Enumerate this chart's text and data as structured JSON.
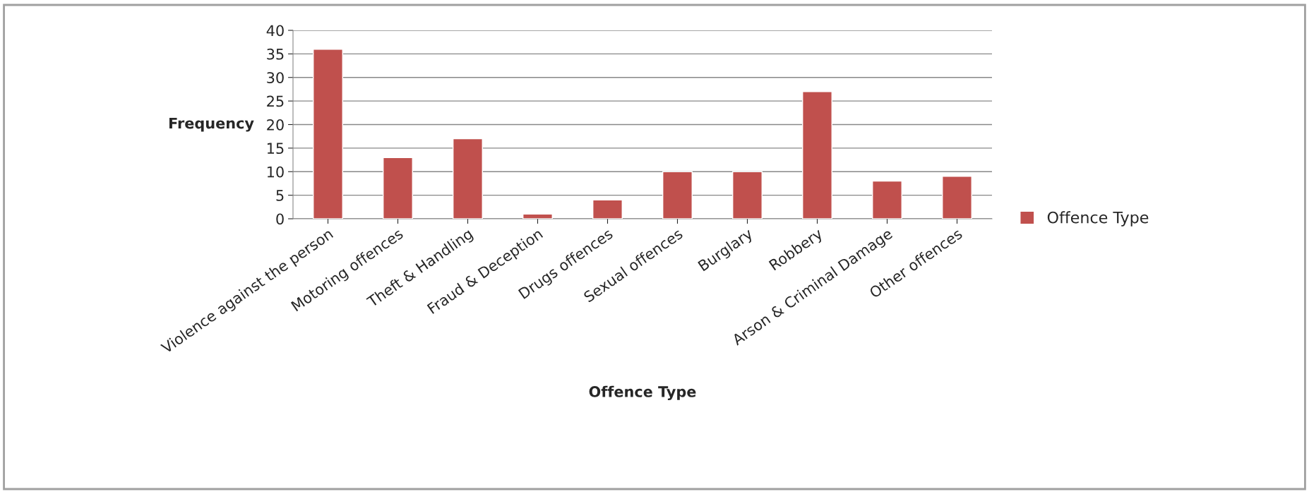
{
  "chart_data": {
    "type": "bar",
    "xlabel": "Offence Type",
    "ylabel": "Frequency",
    "categories": [
      "Violence against the person",
      "Motoring offences",
      "Theft & Handling",
      "Fraud & Deception",
      "Drugs offences",
      "Sexual offences",
      "Burglary",
      "Robbery",
      "Arson & Criminal Damage",
      "Other offences"
    ],
    "series": [
      {
        "name": "Offence Type",
        "color": "#c0504d",
        "values": [
          36,
          13,
          17,
          1,
          4,
          10,
          10,
          27,
          8,
          9
        ]
      }
    ],
    "ylim": [
      0,
      40
    ],
    "yticks": [
      0,
      5,
      10,
      15,
      20,
      25,
      30,
      35,
      40
    ],
    "grid": "y",
    "legend": "right"
  }
}
